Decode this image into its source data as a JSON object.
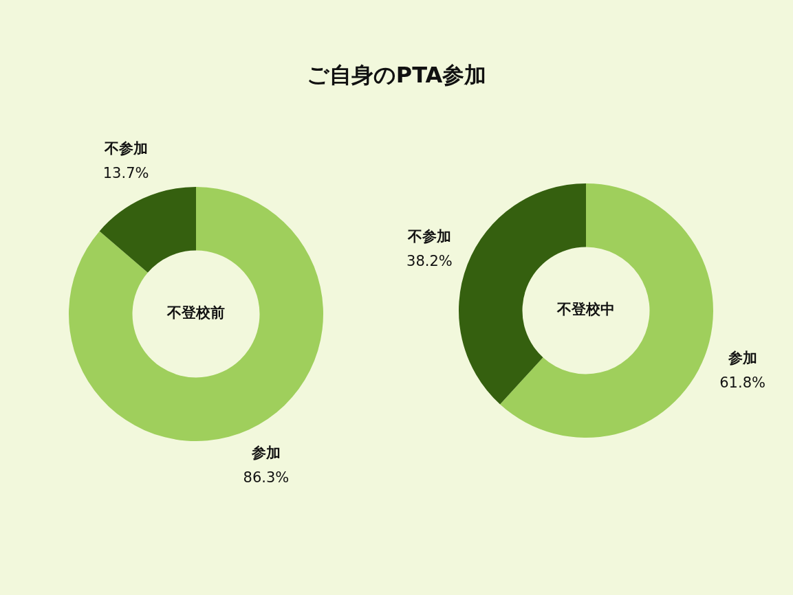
{
  "chart_data": [
    {
      "type": "donut",
      "title": "ご自身のPTA参加",
      "categories": [
        "参加",
        "不参加"
      ],
      "values": [
        86.3,
        13.7
      ],
      "colors": [
        "#9fcf5c",
        "#35600f"
      ],
      "value_labels": [
        "86.3%",
        "13.7%"
      ],
      "annotations": [
        "不登校前"
      ],
      "legend": false
    },
    {
      "type": "donut",
      "categories": [
        "参加",
        "不参加"
      ],
      "values": [
        61.8,
        38.2
      ],
      "colors": [
        "#9fcf5c",
        "#35600f"
      ],
      "value_labels": [
        "61.8%",
        "38.2%"
      ],
      "annotations": [
        "不登校中"
      ],
      "legend": false
    }
  ]
}
